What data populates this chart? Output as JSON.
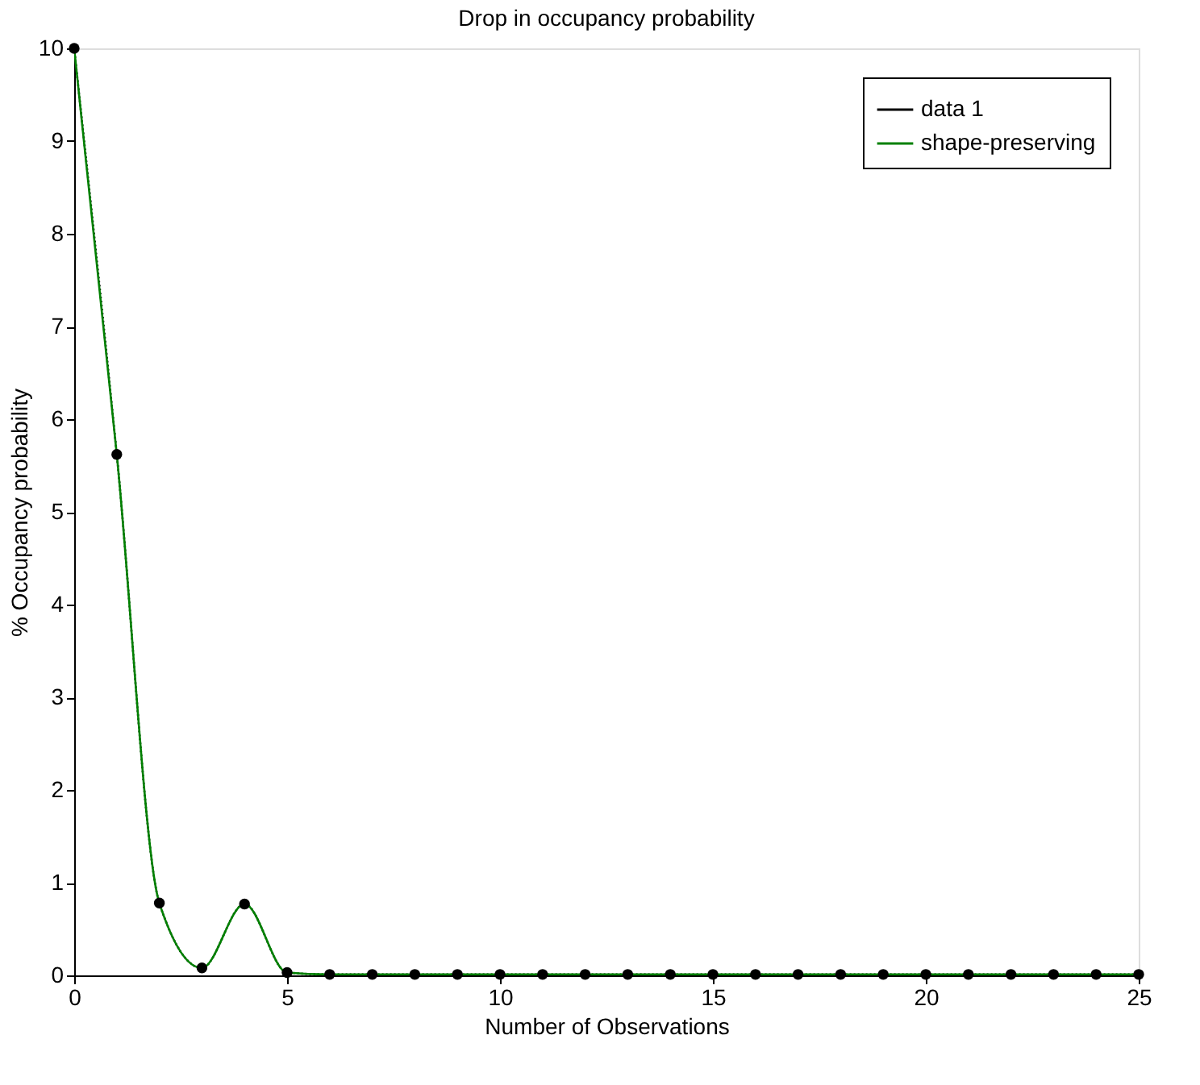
{
  "chart_data": {
    "type": "line",
    "title": "Drop in occupancy probability",
    "xlabel": "Number of Observations",
    "ylabel": "% Occupancy probability",
    "xlim": [
      0,
      25
    ],
    "xticks": [
      0,
      5,
      10,
      15,
      20,
      25
    ],
    "ylim": [
      0,
      10
    ],
    "yticks": [
      0,
      1,
      2,
      3,
      4,
      5,
      6,
      7,
      8,
      9,
      10
    ],
    "grid": false,
    "legend": "top right",
    "x": [
      0,
      1,
      2,
      3,
      4,
      5,
      6,
      7,
      8,
      9,
      10,
      11,
      12,
      13,
      14,
      15,
      16,
      17,
      18,
      19,
      20,
      21,
      22,
      23,
      24,
      25
    ],
    "series": [
      {
        "name": "data 1",
        "color": "#000000",
        "marker": "circle",
        "line_style": "dotted",
        "values": [
          10,
          5.62,
          0.78,
          0.08,
          0.77,
          0.03,
          0.01,
          0.01,
          0.01,
          0.01,
          0.01,
          0.01,
          0.01,
          0.01,
          0.01,
          0.01,
          0.01,
          0.01,
          0.01,
          0.01,
          0.01,
          0.01,
          0.01,
          0.01,
          0.01,
          0.01
        ]
      },
      {
        "name": "shape-preserving",
        "color": "#008000",
        "marker": "none",
        "line_style": "solid",
        "values": [
          10,
          5.62,
          0.78,
          0.08,
          0.77,
          0.03,
          0.01,
          0.01,
          0.01,
          0.01,
          0.01,
          0.01,
          0.01,
          0.01,
          0.01,
          0.01,
          0.01,
          0.01,
          0.01,
          0.01,
          0.01,
          0.01,
          0.01,
          0.01,
          0.01,
          0.01
        ]
      }
    ]
  }
}
